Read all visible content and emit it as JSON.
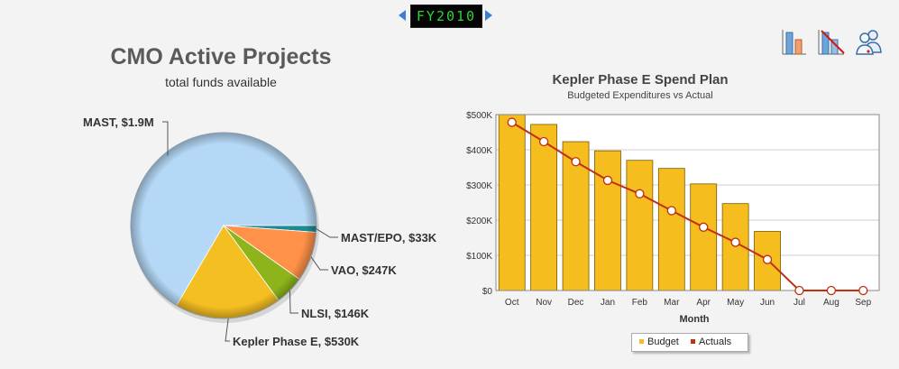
{
  "fiscal_year": "FY2010",
  "colors": {
    "budget": "#f5bd1e",
    "actuals": "#c03010",
    "mast": "#b4d8f6",
    "mast_epo": "#1f8a94",
    "vao": "#ff9148",
    "nlsi": "#8db51b",
    "kepler": "#f4bf22"
  },
  "toolbar": {
    "icons": [
      "bar-chart-icon",
      "cancel-chart-icon",
      "users-icon"
    ]
  },
  "chart_data": [
    {
      "type": "pie",
      "title": "CMO Active Projects",
      "subtitle": "total funds available",
      "slices": [
        {
          "label": "MAST, $1.9M",
          "value": 1900
        },
        {
          "label": "MAST/EPO, $33K",
          "value": 33
        },
        {
          "label": "VAO, $247K",
          "value": 247
        },
        {
          "label": "NLSI, $146K",
          "value": 146
        },
        {
          "label": "Kepler Phase E, $530K",
          "value": 530
        }
      ]
    },
    {
      "type": "bar",
      "title": "Kepler Phase E Spend Plan",
      "subtitle": "Budgeted Expenditures vs Actual",
      "xlabel": "Month",
      "ylabel": "",
      "categories": [
        "Oct",
        "Nov",
        "Dec",
        "Jan",
        "Feb",
        "Mar",
        "Apr",
        "May",
        "Jun",
        "Jul",
        "Aug",
        "Sep"
      ],
      "yticks": [
        "$0",
        "$100K",
        "$200K",
        "$300K",
        "$400K",
        "$500K"
      ],
      "ylim": [
        0,
        500000
      ],
      "grid": true,
      "legend_position": "bottom",
      "series": [
        {
          "name": "Budget",
          "type": "bar",
          "values": [
            505000,
            472000,
            423000,
            397000,
            370000,
            347000,
            303000,
            247000,
            168000,
            0,
            0,
            0
          ]
        },
        {
          "name": "Actuals",
          "type": "line",
          "values": [
            478000,
            423000,
            366000,
            313000,
            275000,
            227000,
            180000,
            137000,
            88000,
            0,
            0,
            0
          ]
        }
      ]
    }
  ]
}
